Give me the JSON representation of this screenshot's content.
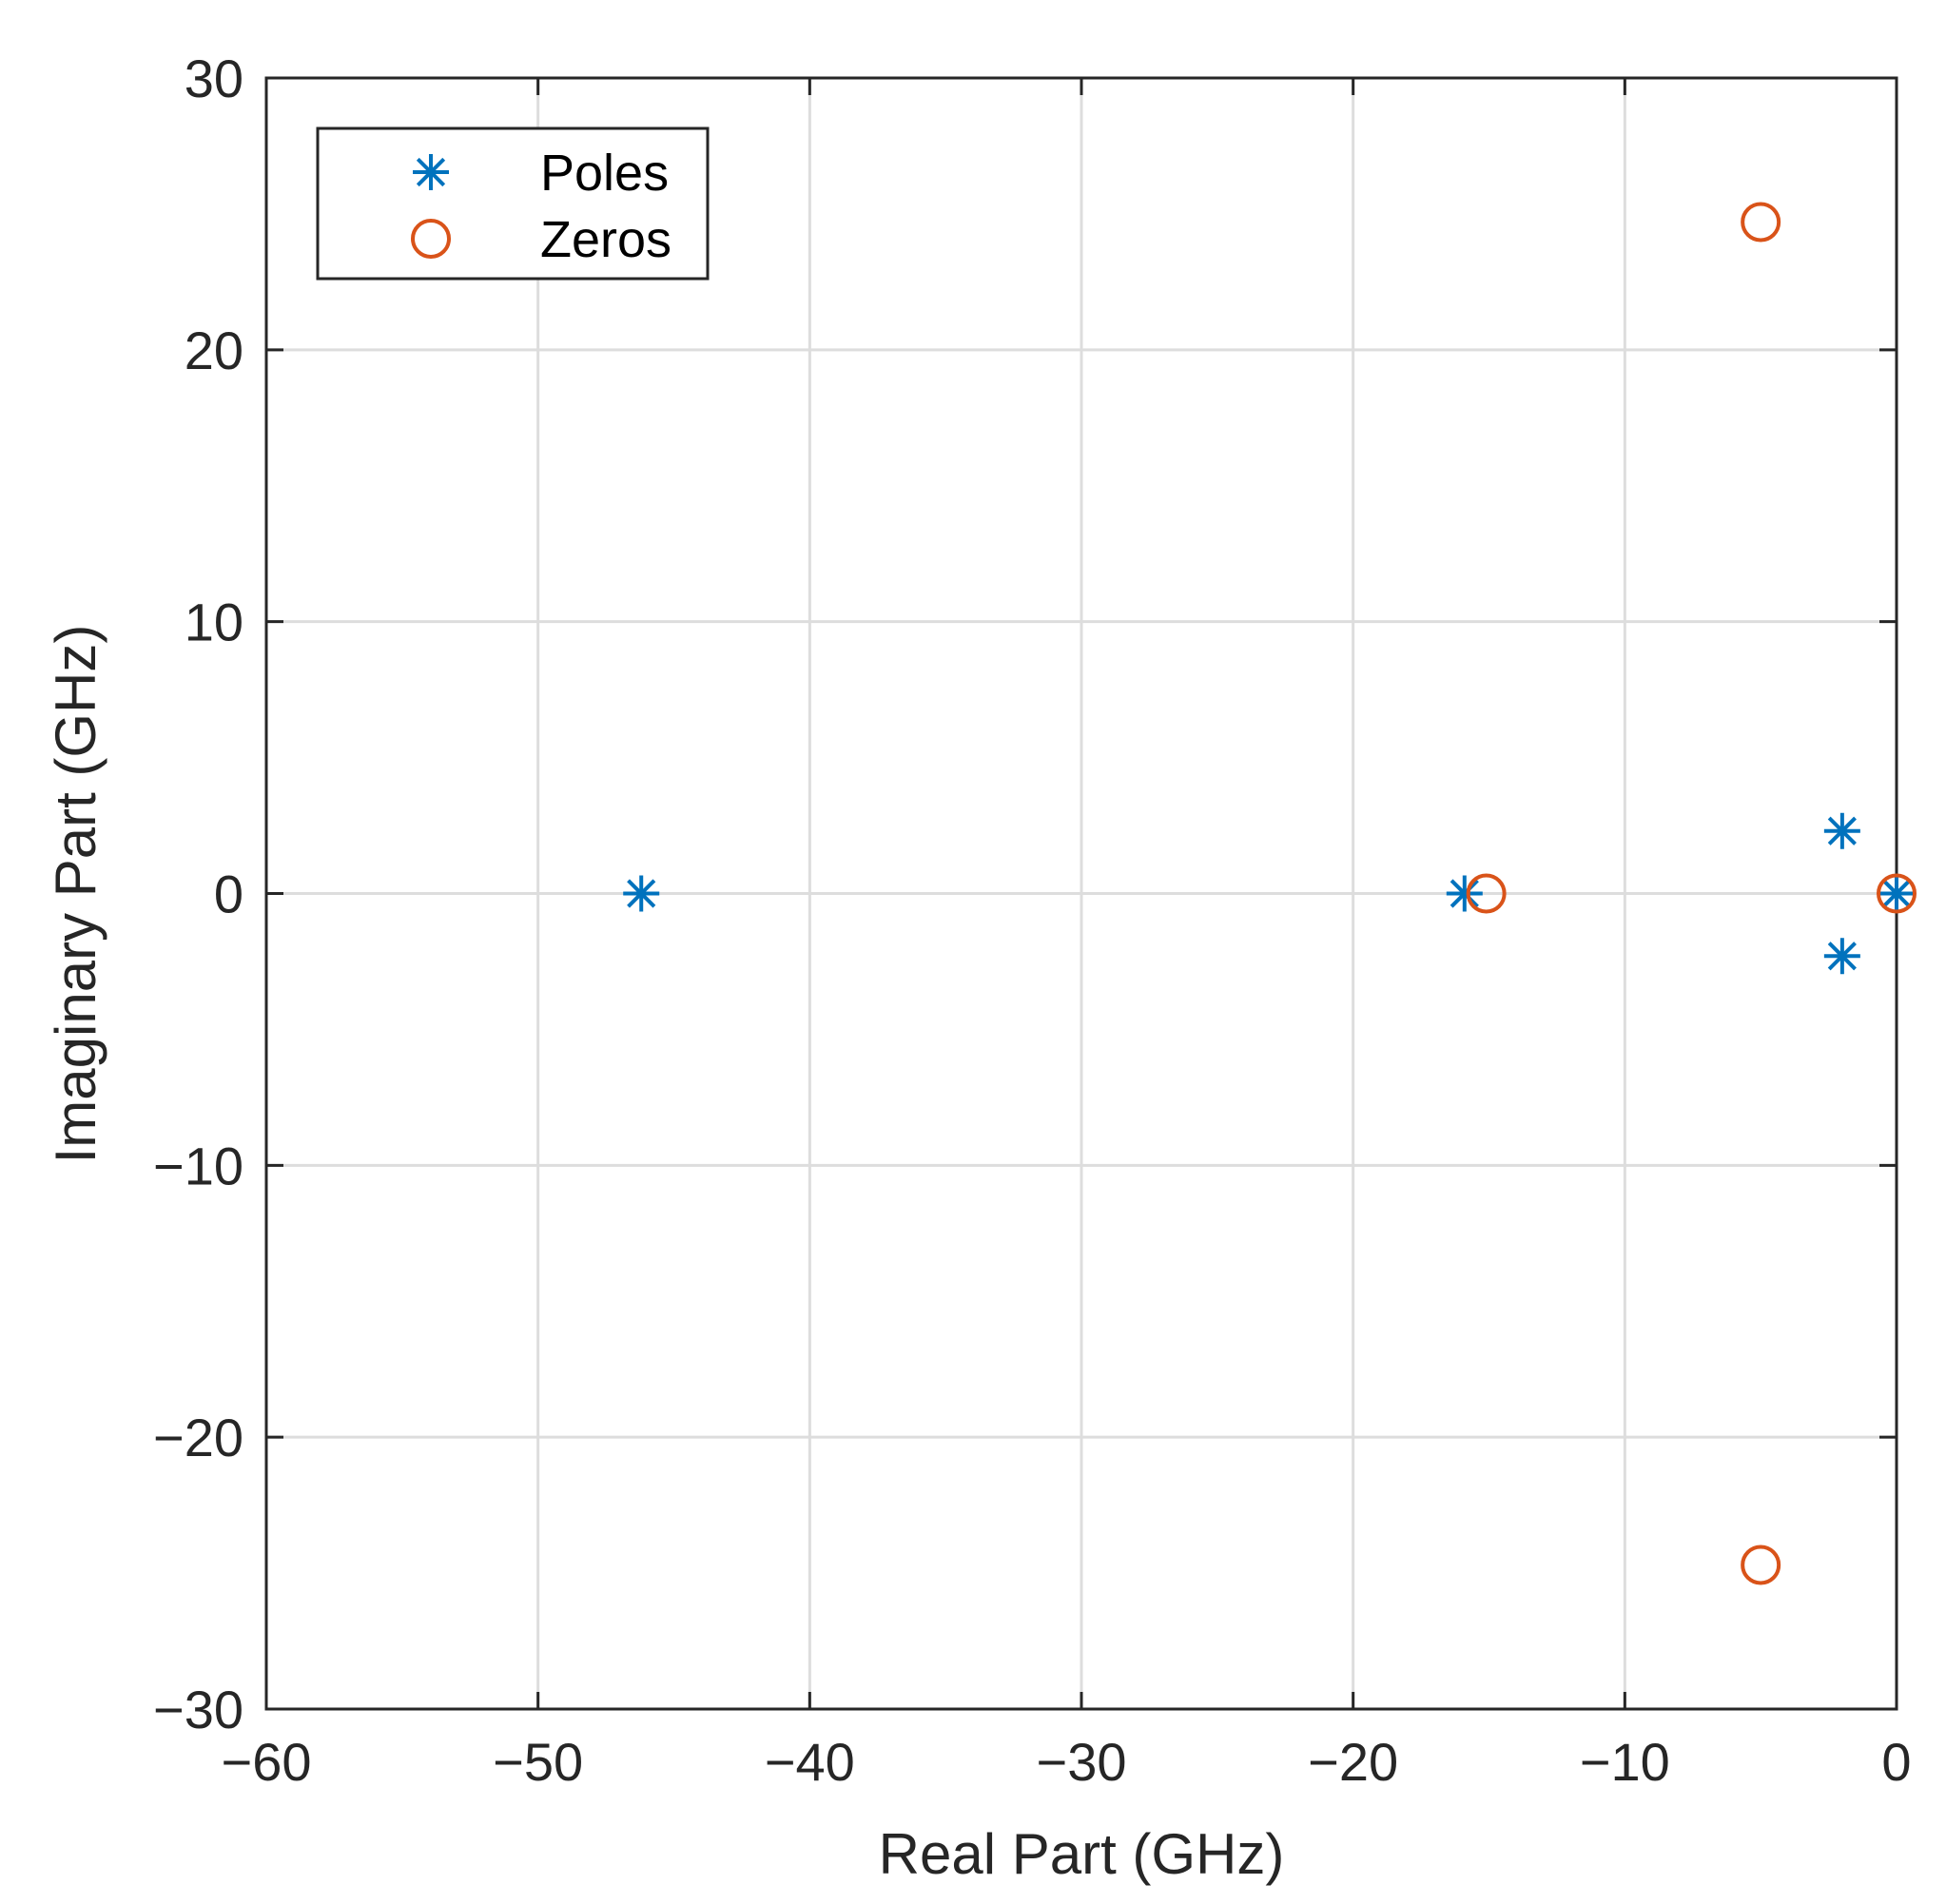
{
  "chart_data": {
    "type": "scatter",
    "title": "",
    "xlabel": "Real Part (GHz)",
    "ylabel": "Imaginary Part (GHz)",
    "xlim": [
      -60,
      0
    ],
    "ylim": [
      -30,
      30
    ],
    "grid": true,
    "legend_position": "top-left",
    "xticks": [
      -60,
      -50,
      -40,
      -30,
      -20,
      -10,
      0
    ],
    "yticks": [
      -30,
      -20,
      -10,
      0,
      10,
      20,
      30
    ],
    "xtick_labels": [
      "−60",
      "−50",
      "−40",
      "−30",
      "−20",
      "−10",
      "0"
    ],
    "ytick_labels": [
      "−30",
      "−20",
      "−10",
      "0",
      "10",
      "20",
      "30"
    ],
    "series": [
      {
        "name": "Poles",
        "marker": "asterisk",
        "color": "#0072BD",
        "points": [
          [
            -46.2,
            0
          ],
          [
            -15.9,
            0
          ],
          [
            -2.0,
            2.3
          ],
          [
            -2.0,
            -2.3
          ],
          [
            0,
            0
          ]
        ]
      },
      {
        "name": "Zeros",
        "marker": "circle",
        "color": "#D95319",
        "points": [
          [
            -5.0,
            24.7
          ],
          [
            -5.0,
            -24.7
          ],
          [
            -15.1,
            0
          ],
          [
            0,
            0
          ]
        ]
      }
    ]
  }
}
